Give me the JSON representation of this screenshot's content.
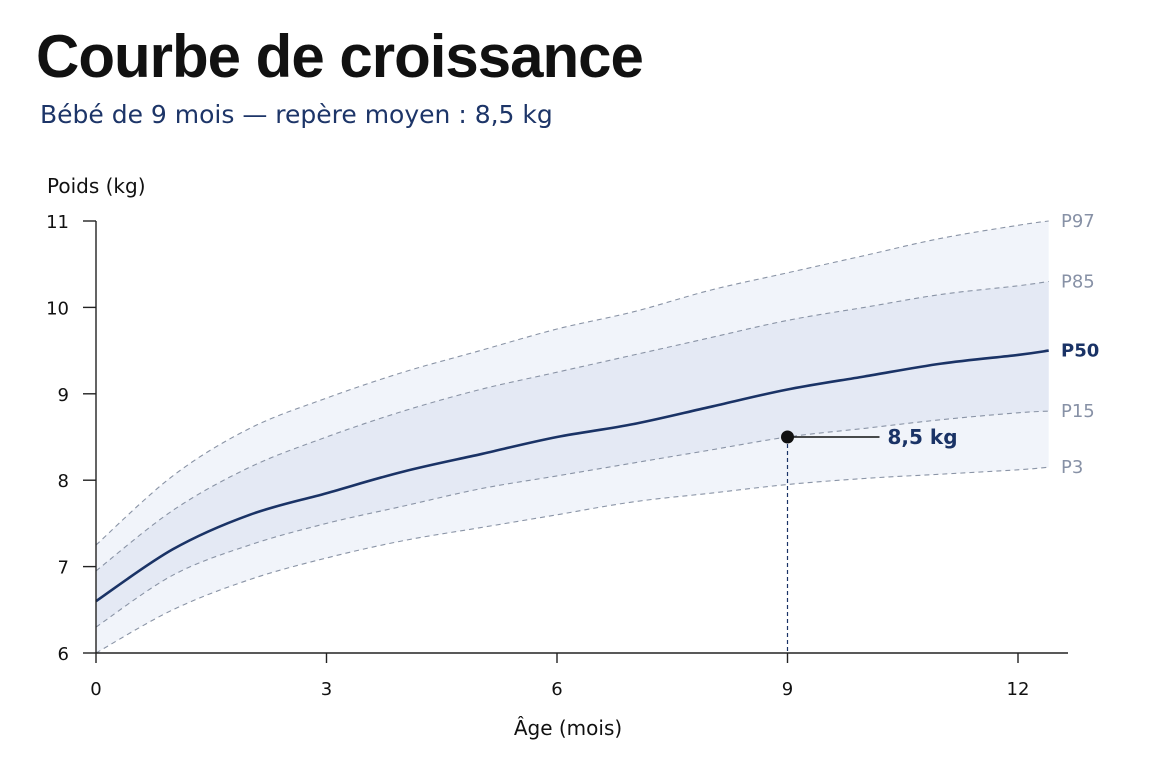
{
  "title": "Courbe de croissance",
  "subtitle": "Bébé de 9 mois — repère moyen : 8,5 kg",
  "chart_data": {
    "type": "line",
    "xlabel": "Âge (mois)",
    "ylabel": "Poids (kg)",
    "xlim": [
      0,
      12.4
    ],
    "ylim": [
      6,
      11
    ],
    "xticks": [
      0,
      3,
      6,
      9,
      12
    ],
    "yticks": [
      6,
      7,
      8,
      9,
      10,
      11
    ],
    "grid": false,
    "colors": {
      "median": "#1a3366",
      "percentile_line": "#8a94a6",
      "percentile_label": "#8791a6",
      "outer_band": "#f1f4fa",
      "inner_band": "#e4e9f4",
      "point": "#111111",
      "axis": "#222222"
    },
    "x": [
      0,
      1,
      2,
      3,
      4,
      5,
      6,
      7,
      8,
      9,
      10,
      11,
      12,
      12.4
    ],
    "series": [
      {
        "name": "P97",
        "style": "dashed",
        "values": [
          7.25,
          8.05,
          8.6,
          8.95,
          9.25,
          9.5,
          9.75,
          9.95,
          10.2,
          10.4,
          10.6,
          10.8,
          10.95,
          11.0
        ]
      },
      {
        "name": "P85",
        "style": "dashed",
        "values": [
          6.95,
          7.65,
          8.15,
          8.5,
          8.8,
          9.05,
          9.25,
          9.45,
          9.65,
          9.85,
          10.0,
          10.15,
          10.25,
          10.3
        ]
      },
      {
        "name": "P50",
        "style": "solid",
        "values": [
          6.6,
          7.2,
          7.6,
          7.85,
          8.1,
          8.3,
          8.5,
          8.65,
          8.85,
          9.05,
          9.2,
          9.35,
          9.45,
          9.5
        ]
      },
      {
        "name": "P15",
        "style": "dashed",
        "values": [
          6.3,
          6.9,
          7.25,
          7.5,
          7.7,
          7.9,
          8.05,
          8.2,
          8.35,
          8.5,
          8.6,
          8.7,
          8.78,
          8.8
        ]
      },
      {
        "name": "P3",
        "style": "dashed",
        "values": [
          6.0,
          6.5,
          6.85,
          7.1,
          7.3,
          7.45,
          7.6,
          7.75,
          7.85,
          7.95,
          8.02,
          8.07,
          8.12,
          8.15
        ]
      }
    ],
    "point": {
      "x": 9,
      "y": 8.5,
      "label": "8,5 kg"
    }
  }
}
